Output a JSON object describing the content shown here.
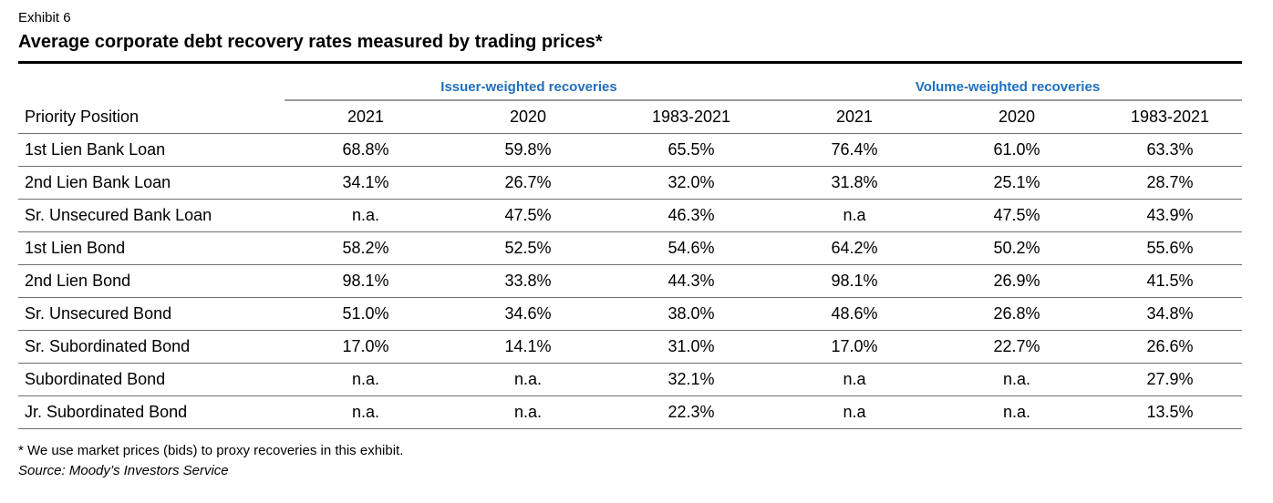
{
  "exhibit_label": "Exhibit 6",
  "title": "Average corporate debt recovery rates measured by trading prices*",
  "groups": {
    "issuer": "Issuer-weighted recoveries",
    "volume": "Volume-weighted recoveries"
  },
  "columns": [
    "Priority Position",
    "2021",
    "2020",
    "1983-2021",
    "2021",
    "2020",
    "1983-2021"
  ],
  "rows": [
    {
      "label": "1st Lien Bank Loan",
      "values": [
        "68.8%",
        "59.8%",
        "65.5%",
        "76.4%",
        "61.0%",
        "63.3%"
      ]
    },
    {
      "label": "2nd Lien Bank Loan",
      "values": [
        "34.1%",
        "26.7%",
        "32.0%",
        "31.8%",
        "25.1%",
        "28.7%"
      ]
    },
    {
      "label": "Sr. Unsecured Bank Loan",
      "values": [
        "n.a.",
        "47.5%",
        "46.3%",
        "n.a",
        "47.5%",
        "43.9%"
      ]
    },
    {
      "label": "1st Lien Bond",
      "values": [
        "58.2%",
        "52.5%",
        "54.6%",
        "64.2%",
        "50.2%",
        "55.6%"
      ]
    },
    {
      "label": "2nd Lien Bond",
      "values": [
        "98.1%",
        "33.8%",
        "44.3%",
        "98.1%",
        "26.9%",
        "41.5%"
      ]
    },
    {
      "label": "Sr. Unsecured Bond",
      "values": [
        "51.0%",
        "34.6%",
        "38.0%",
        "48.6%",
        "26.8%",
        "34.8%"
      ]
    },
    {
      "label": "Sr. Subordinated Bond",
      "values": [
        "17.0%",
        "14.1%",
        "31.0%",
        "17.0%",
        "22.7%",
        "26.6%"
      ]
    },
    {
      "label": "Subordinated Bond",
      "values": [
        "n.a.",
        "n.a.",
        "32.1%",
        "n.a",
        "n.a.",
        "27.9%"
      ]
    },
    {
      "label": "Jr. Subordinated Bond",
      "values": [
        "n.a.",
        "n.a.",
        "22.3%",
        "n.a",
        "n.a.",
        "13.5%"
      ]
    }
  ],
  "footnote": "* We use market prices (bids) to proxy recoveries in this exhibit.",
  "source": "Source: Moody’s Investors Service",
  "colors": {
    "group_header": "#1f6fbf"
  }
}
